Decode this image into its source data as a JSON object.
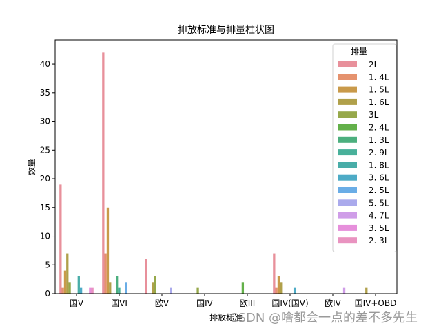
{
  "chart_data": {
    "type": "bar",
    "title": "排放标准与排量柱状图",
    "xlabel": "排放标准",
    "ylabel": "数量",
    "ylim": [
      0,
      44.2
    ],
    "yticks": [
      0,
      5,
      10,
      15,
      20,
      25,
      30,
      35,
      40
    ],
    "grid": false,
    "legend_title": "排量",
    "legend_position": "upper right",
    "categories": [
      "国V",
      "国VI",
      "欧V",
      "国IV",
      "欧III",
      "国IV(国V)",
      "欧IV",
      "国IV+OBD"
    ],
    "series": [
      {
        "name": "2L",
        "color": "#e8909b",
        "values": [
          19,
          42,
          6,
          0,
          0,
          7,
          0,
          0
        ]
      },
      {
        "name": "1.4L",
        "color": "#e5926e",
        "values": [
          1,
          7,
          0,
          0,
          0,
          1,
          0,
          0
        ]
      },
      {
        "name": "1.5L",
        "color": "#c99a4a",
        "values": [
          4,
          15,
          0,
          0,
          0,
          3,
          0,
          0
        ]
      },
      {
        "name": "1.6L",
        "color": "#b0a04a",
        "values": [
          7,
          2,
          2,
          0,
          0,
          2,
          0,
          1
        ]
      },
      {
        "name": "3L",
        "color": "#96a84a",
        "values": [
          2,
          0,
          3,
          1,
          0,
          0,
          0,
          0
        ]
      },
      {
        "name": "2.4L",
        "color": "#63b04a",
        "values": [
          0,
          0,
          0,
          0,
          2,
          0,
          0,
          0
        ]
      },
      {
        "name": "1.3L",
        "color": "#4caf7e",
        "values": [
          0,
          3,
          0,
          0,
          0,
          0,
          0,
          0
        ]
      },
      {
        "name": "2.9L",
        "color": "#48b09a",
        "values": [
          0,
          1,
          0,
          0,
          0,
          0,
          0,
          0
        ]
      },
      {
        "name": "1.8L",
        "color": "#49ada8",
        "values": [
          3,
          0,
          0,
          0,
          0,
          0,
          0,
          0
        ]
      },
      {
        "name": "3.6L",
        "color": "#4dabc6",
        "values": [
          1,
          0,
          0,
          0,
          0,
          1,
          0,
          0
        ]
      },
      {
        "name": "2.5L",
        "color": "#6aade6",
        "values": [
          0,
          2,
          0,
          0,
          0,
          0,
          0,
          0
        ]
      },
      {
        "name": "5.5L",
        "color": "#aaaaec",
        "values": [
          0,
          0,
          1,
          0,
          0,
          0,
          0,
          0
        ]
      },
      {
        "name": "4.7L",
        "color": "#cf9de8",
        "values": [
          0,
          0,
          0,
          0,
          0,
          0,
          1,
          0
        ]
      },
      {
        "name": "3.5L",
        "color": "#e68fdb",
        "values": [
          1,
          0,
          0,
          0,
          0,
          0,
          0,
          0
        ]
      },
      {
        "name": "2.3L",
        "color": "#e993c0",
        "values": [
          1,
          0,
          0,
          0,
          0,
          0,
          0,
          0
        ]
      }
    ]
  },
  "watermark": "CSDN @啥都会一点的差不多先生"
}
